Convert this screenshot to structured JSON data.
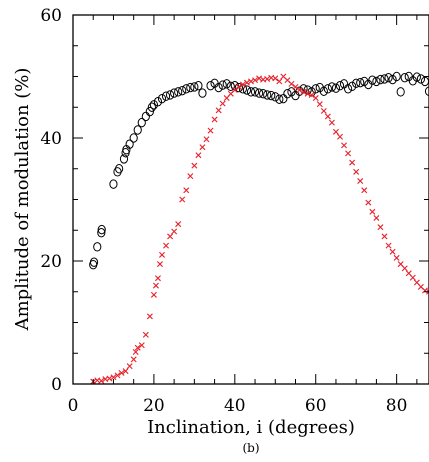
{
  "chart_data": {
    "type": "scatter",
    "title": "",
    "caption": "(b)",
    "xlabel": "Inclination, i (degrees)",
    "ylabel": "Amplitude of modulation (%)",
    "xlim": [
      0,
      88
    ],
    "ylim": [
      0,
      60
    ],
    "x_ticks": [
      "0",
      "20",
      "40",
      "60",
      "80"
    ],
    "y_ticks": [
      "0",
      "20",
      "40",
      "60"
    ],
    "grid": false,
    "legend": "none",
    "series": [
      {
        "marker": "open-circle",
        "color": "#000000",
        "points": [
          [
            5,
            19.4
          ],
          [
            5.2,
            19.8
          ],
          [
            6,
            22.3
          ],
          [
            7,
            24.6
          ],
          [
            7.1,
            25.1
          ],
          [
            10,
            32.5
          ],
          [
            11,
            34.5
          ],
          [
            11.4,
            35.0
          ],
          [
            12.6,
            36.6
          ],
          [
            13,
            37.6
          ],
          [
            13.2,
            38.1
          ],
          [
            14,
            39.0
          ],
          [
            15,
            40.0
          ],
          [
            16,
            41.3
          ],
          [
            17,
            42.5
          ],
          [
            18,
            43.5
          ],
          [
            19,
            44.3
          ],
          [
            19.5,
            45.0
          ],
          [
            20,
            45.4
          ],
          [
            21,
            45.9
          ],
          [
            22,
            46.4
          ],
          [
            23,
            46.8
          ],
          [
            24,
            47.0
          ],
          [
            25,
            47.3
          ],
          [
            26,
            47.5
          ],
          [
            27,
            47.7
          ],
          [
            28,
            48.0
          ],
          [
            29,
            48.2
          ],
          [
            30,
            48.3
          ],
          [
            31,
            48.5
          ],
          [
            32,
            47.3
          ],
          [
            34,
            48.5
          ],
          [
            35,
            48.9
          ],
          [
            36,
            48.2
          ],
          [
            37,
            48.6
          ],
          [
            38,
            48.8
          ],
          [
            39,
            48.4
          ],
          [
            40,
            48.5
          ],
          [
            41,
            48.2
          ],
          [
            42,
            48.0
          ],
          [
            43,
            47.8
          ],
          [
            44,
            47.5
          ],
          [
            45,
            47.5
          ],
          [
            46,
            47.3
          ],
          [
            47,
            47.2
          ],
          [
            48,
            47.0
          ],
          [
            49,
            46.9
          ],
          [
            50,
            46.7
          ],
          [
            51,
            46.3
          ],
          [
            52,
            46.4
          ],
          [
            53,
            47.2
          ],
          [
            54,
            47.5
          ],
          [
            55,
            46.9
          ],
          [
            56,
            47.6
          ],
          [
            57,
            48.0
          ],
          [
            58,
            47.8
          ],
          [
            59,
            47.5
          ],
          [
            60,
            48.0
          ],
          [
            61,
            48.2
          ],
          [
            62,
            47.6
          ],
          [
            63,
            48.0
          ],
          [
            64,
            48.3
          ],
          [
            65,
            48.1
          ],
          [
            66,
            48.5
          ],
          [
            67,
            48.8
          ],
          [
            68,
            48.0
          ],
          [
            69,
            48.4
          ],
          [
            70,
            48.9
          ],
          [
            71,
            49.0
          ],
          [
            72,
            49.2
          ],
          [
            73,
            48.7
          ],
          [
            74,
            49.4
          ],
          [
            75,
            49.2
          ],
          [
            76,
            49.5
          ],
          [
            77,
            49.6
          ],
          [
            78,
            49.8
          ],
          [
            79,
            49.5
          ],
          [
            80,
            50.0
          ],
          [
            81,
            47.5
          ],
          [
            82,
            49.8
          ],
          [
            83,
            50.0
          ],
          [
            84,
            49.3
          ],
          [
            85,
            49.9
          ],
          [
            86,
            49.6
          ],
          [
            87,
            49.2
          ],
          [
            88,
            47.6
          ]
        ]
      },
      {
        "marker": "x",
        "color": "#e8202a",
        "points": [
          [
            5,
            0.4
          ],
          [
            6,
            0.6
          ],
          [
            7,
            0.5
          ],
          [
            8,
            0.8
          ],
          [
            9,
            0.9
          ],
          [
            10,
            1.1
          ],
          [
            11,
            1.4
          ],
          [
            12,
            1.8
          ],
          [
            13,
            2.1
          ],
          [
            14,
            2.9
          ],
          [
            15,
            4.0
          ],
          [
            15.5,
            5.2
          ],
          [
            16,
            5.9
          ],
          [
            17,
            6.3
          ],
          [
            18,
            8.0
          ],
          [
            19,
            11.0
          ],
          [
            20,
            14.5
          ],
          [
            20.5,
            16.0
          ],
          [
            21,
            17.2
          ],
          [
            21.5,
            19.5
          ],
          [
            22,
            21.0
          ],
          [
            23,
            22.5
          ],
          [
            24,
            24.0
          ],
          [
            25,
            24.8
          ],
          [
            26,
            26.0
          ],
          [
            27,
            30.0
          ],
          [
            28,
            31.5
          ],
          [
            29,
            33.8
          ],
          [
            30,
            35.5
          ],
          [
            31,
            37.2
          ],
          [
            32,
            38.5
          ],
          [
            33,
            39.8
          ],
          [
            34,
            41.2
          ],
          [
            35,
            43.0
          ],
          [
            36,
            44.5
          ],
          [
            37,
            45.6
          ],
          [
            38,
            46.5
          ],
          [
            39,
            47.2
          ],
          [
            40,
            47.8
          ],
          [
            41,
            48.3
          ],
          [
            42,
            48.7
          ],
          [
            43,
            49.0
          ],
          [
            44,
            49.2
          ],
          [
            45,
            49.4
          ],
          [
            46,
            49.7
          ],
          [
            47,
            49.5
          ],
          [
            48,
            49.6
          ],
          [
            49,
            49.8
          ],
          [
            50,
            49.7
          ],
          [
            51,
            49.2
          ],
          [
            52,
            50.0
          ],
          [
            53,
            49.4
          ],
          [
            54,
            48.8
          ],
          [
            55,
            48.3
          ],
          [
            56,
            47.8
          ],
          [
            57,
            47.5
          ],
          [
            58,
            47.2
          ],
          [
            59,
            47.0
          ],
          [
            60,
            46.5
          ],
          [
            61,
            45.5
          ],
          [
            62,
            44.4
          ],
          [
            63,
            43.5
          ],
          [
            64,
            42.5
          ],
          [
            65,
            41.0
          ],
          [
            66,
            40.2
          ],
          [
            67,
            38.8
          ],
          [
            68,
            37.5
          ],
          [
            69,
            36.0
          ],
          [
            70,
            34.5
          ],
          [
            71,
            33.0
          ],
          [
            72,
            31.5
          ],
          [
            73,
            29.5
          ],
          [
            74,
            28.0
          ],
          [
            75,
            27.0
          ],
          [
            76,
            25.5
          ],
          [
            77,
            24.0
          ],
          [
            78,
            22.5
          ],
          [
            79,
            21.5
          ],
          [
            80,
            20.5
          ],
          [
            81,
            19.5
          ],
          [
            82,
            18.8
          ],
          [
            83,
            18.0
          ],
          [
            84,
            17.3
          ],
          [
            85,
            16.5
          ],
          [
            86,
            15.8
          ],
          [
            87,
            15.2
          ],
          [
            88,
            15.0
          ]
        ]
      }
    ]
  }
}
